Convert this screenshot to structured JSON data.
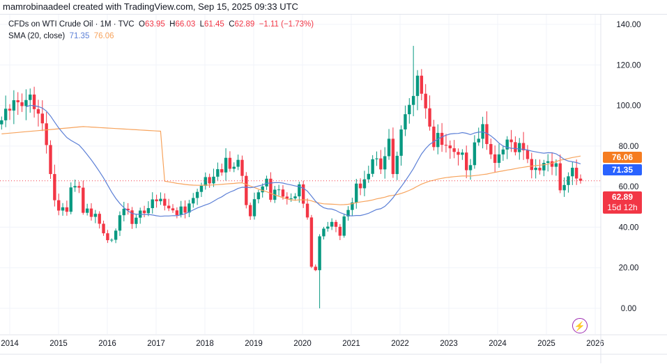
{
  "credit": "mamrobinaadeel created with TradingView.com, Sep 15, 2025 09:33 UTC",
  "legend": {
    "symbol": "CFDs on WTI Crude Oil · 1M · TVC",
    "o_label": "O",
    "o": "63.95",
    "h_label": "H",
    "h": "66.03",
    "l_label": "L",
    "l": "61.45",
    "c_label": "C",
    "c": "62.89",
    "change": "−1.11 (−1.73%)",
    "sma_label": "SMA (20, close)",
    "sma1": "71.35",
    "sma2": "76.06"
  },
  "price_labels": {
    "sma2": "76.06",
    "sma1": "71.35",
    "last": "62.89",
    "countdown": "15d 12h"
  },
  "colors": {
    "up": "#089981",
    "down": "#f23645",
    "sma1": "#5b7fd6",
    "sma2": "#f7a35c",
    "last": "#f23645"
  },
  "icons": {
    "bolt": "lightning-icon"
  },
  "chart_data": {
    "type": "candlestick",
    "interval": "1M",
    "start": "2013-11",
    "close": [
      92.7,
      98.4,
      97.5,
      102.6,
      101.6,
      99.7,
      102.7,
      105.4,
      98.2,
      96.0,
      91.2,
      80.5,
      66.2,
      53.3,
      48.2,
      49.8,
      47.6,
      59.6,
      60.3,
      59.5,
      47.1,
      49.2,
      45.1,
      46.6,
      41.7,
      37.0,
      33.6,
      33.8,
      38.3,
      45.9,
      49.1,
      48.3,
      41.6,
      44.7,
      48.2,
      46.9,
      49.4,
      53.7,
      52.8,
      54.0,
      50.6,
      49.3,
      48.3,
      46.0,
      50.2,
      47.2,
      51.7,
      54.4,
      57.4,
      60.4,
      64.7,
      61.6,
      64.9,
      68.6,
      67.0,
      74.2,
      68.8,
      69.8,
      73.2,
      65.3,
      50.9,
      45.4,
      53.8,
      57.2,
      60.1,
      63.9,
      53.5,
      58.5,
      58.6,
      55.1,
      54.1,
      54.2,
      55.2,
      61.1,
      51.6,
      44.8,
      20.5,
      18.8,
      35.5,
      39.3,
      40.3,
      42.6,
      40.2,
      35.8,
      45.3,
      48.5,
      52.2,
      61.5,
      59.2,
      63.6,
      66.3,
      73.5,
      73.9,
      68.5,
      75.0,
      83.6,
      66.2,
      75.2,
      88.2,
      95.7,
      100.3,
      104.7,
      114.7,
      105.8,
      98.6,
      89.6,
      79.5,
      86.5,
      80.6,
      80.3,
      78.9,
      77.1,
      75.7,
      76.8,
      68.1,
      70.6,
      81.8,
      83.6,
      90.8,
      81.0,
      75.9,
      71.7,
      75.9,
      78.3,
      83.2,
      81.9,
      77.0,
      81.5,
      77.9,
      73.6,
      68.2,
      69.3,
      68.0,
      71.7,
      72.5,
      69.8,
      71.5,
      58.2,
      60.8,
      65.1,
      69.3,
      64.0,
      62.89
    ],
    "last_candle": {
      "open": 63.95,
      "high": 66.03,
      "low": 61.45,
      "close": 62.89
    },
    "notable": {
      "low_2020": 0.0,
      "high_2022": 129.4
    },
    "sma": [
      {
        "period": 20,
        "last": 71.35
      },
      {
        "last": 76.06
      }
    ],
    "y_ticks": [
      "140.00",
      "120.00",
      "100.00",
      "80.00",
      "60.00",
      "40.00",
      "20.00",
      "0.00"
    ],
    "x_ticks": [
      "2014",
      "2015",
      "2016",
      "2017",
      "2018",
      "2019",
      "2020",
      "2021",
      "2022",
      "2023",
      "2024",
      "2025",
      "2026"
    ],
    "ylim": [
      0,
      140
    ],
    "grid": true
  }
}
